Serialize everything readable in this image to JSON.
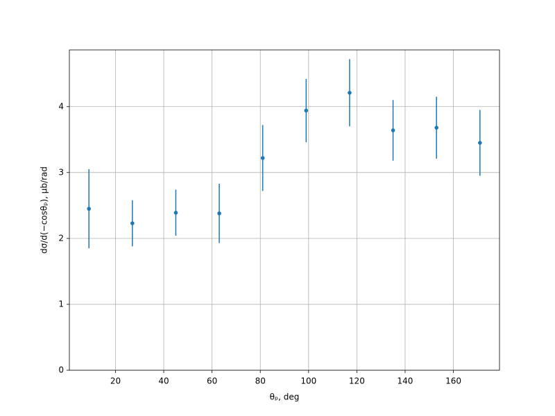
{
  "chart_data": {
    "type": "errorbar",
    "x_label": "θₚ, deg",
    "y_label": "dσ/d(−cosθₚ), μb/rad",
    "x": [
      9,
      27,
      45,
      63,
      81,
      99,
      117,
      135,
      153,
      171
    ],
    "values": [
      2.45,
      2.23,
      2.39,
      2.38,
      3.22,
      3.94,
      4.21,
      3.64,
      3.68,
      3.45
    ],
    "errors": [
      0.6,
      0.35,
      0.35,
      0.45,
      0.5,
      0.48,
      0.51,
      0.46,
      0.47,
      0.5
    ],
    "color": "#1f77b4",
    "xlim": [
      0.9,
      179.1
    ],
    "ylim": [
      0,
      4.86
    ],
    "xticks": [
      20,
      40,
      60,
      80,
      100,
      120,
      140,
      160
    ],
    "yticks": [
      0,
      1,
      2,
      3,
      4
    ],
    "grid": true
  }
}
